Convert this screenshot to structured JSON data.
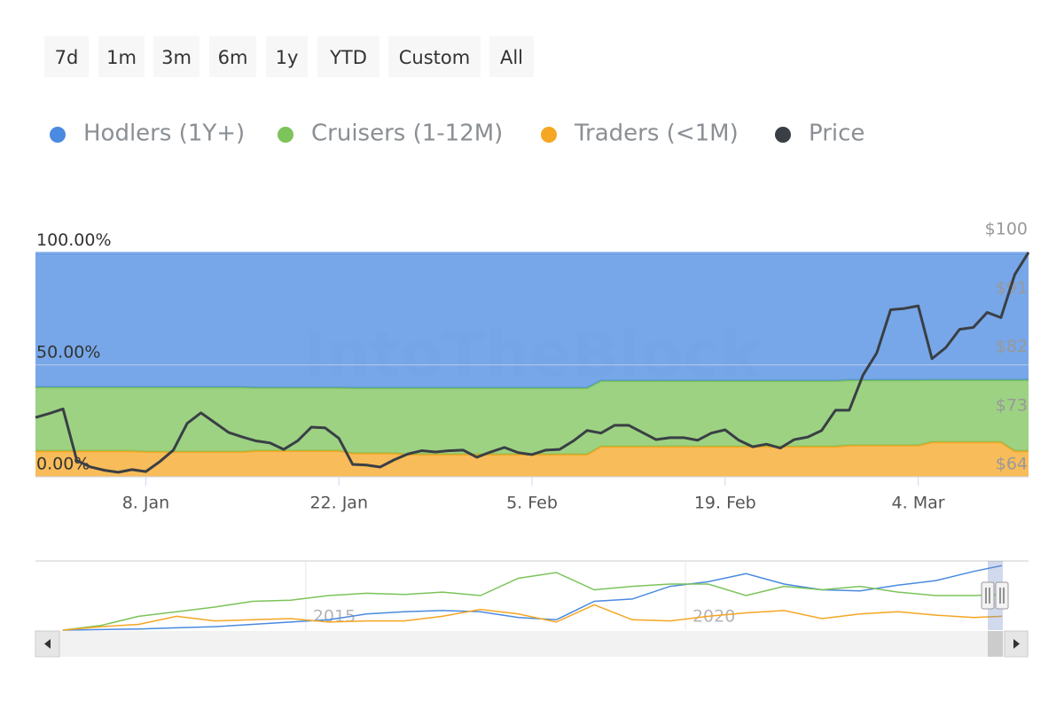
{
  "range_buttons": [
    "7d",
    "1m",
    "3m",
    "6m",
    "1y",
    "YTD",
    "Custom",
    "All"
  ],
  "chart_data": [
    {
      "type": "stacked-area",
      "watermark": "IntoTheBlock",
      "categories": [
        null,
        null,
        null,
        null,
        null,
        null,
        null,
        null,
        "8. Jan",
        null,
        null,
        null,
        null,
        null,
        null,
        null,
        null,
        null,
        null,
        null,
        null,
        null,
        "22. Jan",
        null,
        null,
        null,
        null,
        null,
        null,
        null,
        null,
        null,
        null,
        null,
        null,
        null,
        "5. Feb",
        null,
        null,
        null,
        null,
        null,
        null,
        null,
        null,
        null,
        null,
        null,
        null,
        null,
        "19. Feb",
        null,
        null,
        null,
        null,
        null,
        null,
        null,
        null,
        null,
        null,
        null,
        null,
        null,
        "4. Mar",
        null,
        null,
        null,
        null,
        null,
        null,
        null,
        null
      ],
      "series": [
        {
          "name": "Hodlers (1Y+)",
          "color": "#4a8ae0",
          "values": [
            60,
            60,
            60,
            60,
            60,
            60,
            60,
            60,
            60,
            60,
            60,
            60,
            60,
            60,
            60,
            60,
            60.2,
            60.2,
            60.2,
            60.2,
            60.2,
            60.2,
            60.2,
            60.3,
            60.3,
            60.3,
            60.3,
            60.3,
            60.3,
            60.3,
            60.3,
            60.3,
            60.3,
            60.3,
            60.3,
            60.3,
            60.3,
            60.3,
            60.3,
            60.3,
            60.3,
            57.1,
            57.1,
            57.1,
            57.1,
            57.1,
            57.1,
            57.1,
            57.1,
            57.1,
            57.1,
            57.1,
            57.1,
            57.1,
            57.1,
            57.1,
            57.1,
            57.1,
            57.1,
            56.8,
            56.8,
            56.8,
            56.8,
            56.8,
            56.8,
            56.7,
            56.7,
            56.7,
            56.7,
            56.7,
            56.7,
            56.7,
            56.7
          ]
        },
        {
          "name": "Cruisers (1-12M)",
          "color": "#7cc35a",
          "values": [
            28.5,
            28.5,
            28.5,
            28.5,
            28.5,
            28.5,
            28.5,
            28.5,
            28.8,
            28.8,
            28.8,
            28.8,
            28.8,
            28.8,
            28.8,
            28.8,
            28.2,
            28.2,
            28.2,
            28.2,
            28.2,
            28.2,
            28.2,
            29.2,
            29.2,
            29.2,
            29.2,
            29.7,
            29.7,
            29.7,
            29.7,
            29.7,
            29.7,
            29.7,
            29.7,
            29.7,
            29.7,
            29.7,
            29.7,
            29.7,
            29.7,
            29.4,
            29.4,
            29.4,
            29.4,
            29.4,
            29.4,
            29.4,
            29.4,
            29.4,
            29.4,
            29.4,
            29.4,
            29.4,
            29.4,
            29.4,
            29.4,
            29.4,
            29.4,
            29.2,
            29.2,
            29.2,
            29.2,
            29.2,
            29.2,
            27.8,
            27.8,
            27.8,
            27.8,
            27.8,
            27.8,
            31.8,
            31.8
          ]
        },
        {
          "name": "Traders (<1M)",
          "color": "#f5a623",
          "values": [
            11.5,
            11.5,
            11.5,
            11.5,
            11.5,
            11.5,
            11.5,
            11.5,
            11.2,
            11.2,
            11.2,
            11.2,
            11.2,
            11.2,
            11.2,
            11.2,
            11.6,
            11.6,
            11.6,
            11.6,
            11.6,
            11.6,
            11.6,
            10.5,
            10.5,
            10.5,
            10.5,
            10,
            10,
            10,
            10,
            10,
            10,
            10,
            10,
            10,
            10,
            10,
            10,
            10,
            10,
            13.5,
            13.5,
            13.5,
            13.5,
            13.5,
            13.5,
            13.5,
            13.5,
            13.5,
            13.5,
            13.5,
            13.5,
            13.5,
            13.5,
            13.5,
            13.5,
            13.5,
            13.5,
            14,
            14,
            14,
            14,
            14,
            14,
            15.5,
            15.5,
            15.5,
            15.5,
            15.5,
            15.5,
            11.5,
            11.5
          ]
        },
        {
          "name": "Price",
          "color": "#3a3f45",
          "type": "line",
          "axis": "y2",
          "values": [
            73.1,
            73.7,
            74.4,
            66.5,
            65.5,
            65.0,
            64.7,
            65.1,
            64.8,
            66.3,
            68.1,
            72.2,
            73.8,
            72.3,
            70.8,
            70.1,
            69.5,
            69.2,
            68.2,
            69.5,
            71.6,
            71.5,
            69.9,
            65.9,
            65.8,
            65.5,
            66.6,
            67.5,
            68.0,
            67.8,
            68.0,
            68.1,
            67.0,
            67.8,
            68.5,
            67.7,
            67.4,
            68.1,
            68.2,
            69.5,
            71.1,
            70.7,
            71.9,
            71.9,
            70.8,
            69.7,
            70.0,
            70.0,
            69.6,
            70.7,
            71.2,
            69.6,
            68.6,
            69.0,
            68.4,
            69.7,
            70.1,
            71.1,
            74.2,
            74.2,
            79.6,
            83.0,
            89.6,
            89.8,
            90.2,
            82.1,
            83.8,
            86.6,
            86.9,
            89.2,
            88.4,
            95.0,
            98.4
          ]
        }
      ],
      "ylim": [
        0,
        105
      ],
      "yticks": [
        {
          "value": 0,
          "label": "0.00%"
        },
        {
          "value": 50,
          "label": "50.00%"
        },
        {
          "value": 100,
          "label": "100.00%"
        }
      ],
      "y2lim": [
        64,
        100
      ],
      "y2ticks": [
        {
          "value": 64,
          "label": "$64"
        },
        {
          "value": 73,
          "label": "$73"
        },
        {
          "value": 82,
          "label": "$82"
        },
        {
          "value": 91,
          "label": "$91"
        },
        {
          "value": 100,
          "label": "$100"
        }
      ],
      "grid": true
    },
    {
      "type": "line",
      "x": [
        2011.8,
        2012.3,
        2012.8,
        2013.3,
        2013.8,
        2014.3,
        2014.8,
        2015.3,
        2015.8,
        2016.3,
        2016.8,
        2017.3,
        2017.8,
        2018.3,
        2018.8,
        2019.3,
        2019.8,
        2020.3,
        2020.8,
        2021.3,
        2021.8,
        2022.3,
        2022.8,
        2023.3,
        2023.8,
        2024.17
      ],
      "series": [
        {
          "color": "#4a8ae0",
          "values": [
            0,
            0.5,
            1,
            2,
            3,
            5,
            7,
            9,
            14,
            16,
            17,
            16,
            11,
            9,
            25,
            27,
            38,
            42,
            49,
            40,
            35,
            34,
            39,
            43,
            51,
            56
          ]
        },
        {
          "color": "#7cc35a",
          "values": [
            0,
            4,
            12,
            16,
            20,
            25,
            26,
            30,
            32,
            31,
            33,
            30,
            45,
            50,
            35,
            38,
            40,
            40,
            30,
            38,
            35,
            38,
            33,
            30,
            30,
            31
          ]
        },
        {
          "color": "#f5a623",
          "values": [
            0,
            3,
            5,
            12,
            8,
            9,
            10,
            7,
            8,
            8,
            12,
            18,
            14,
            7,
            22,
            9,
            8,
            12,
            15,
            17,
            10,
            14,
            16,
            13,
            11,
            12
          ]
        }
      ],
      "xlim": [
        2011.44,
        2024.52
      ],
      "xticks": [
        2015,
        2020
      ],
      "ylim": [
        0,
        60
      ]
    }
  ]
}
